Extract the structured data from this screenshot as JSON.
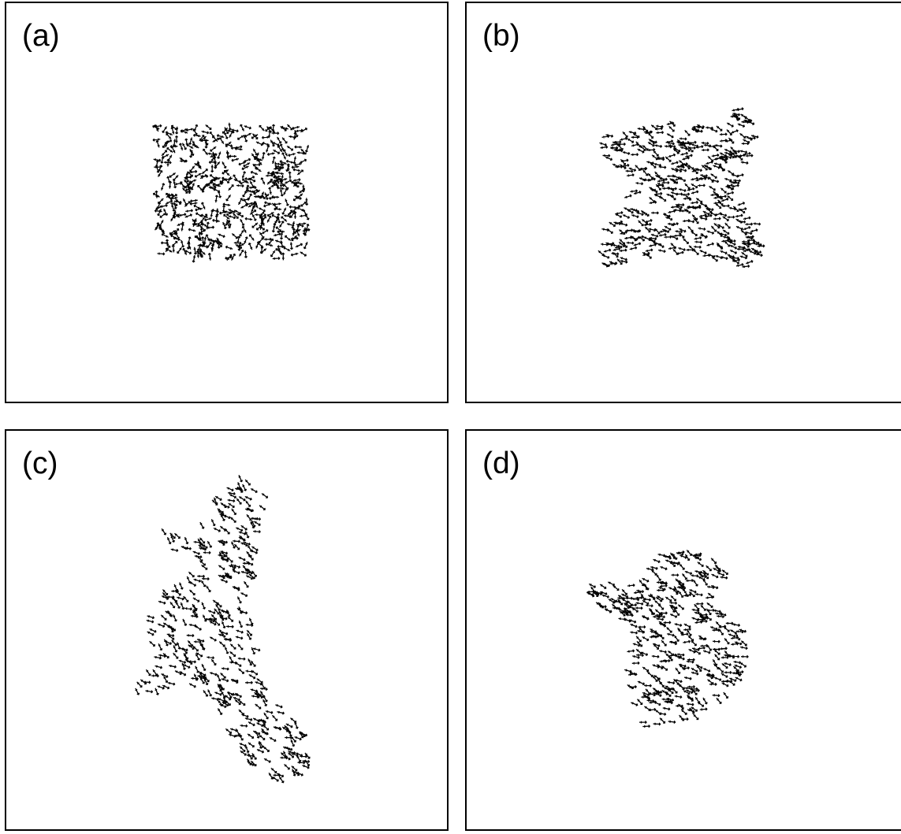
{
  "panels": [
    {
      "id": "a",
      "label": "(a)",
      "formation": "square"
    },
    {
      "id": "b",
      "label": "(b)",
      "formation": "x-shape"
    },
    {
      "id": "c",
      "label": "(c)",
      "formation": "elongated-diagonal"
    },
    {
      "id": "d",
      "label": "(d)",
      "formation": "irregular-blob"
    }
  ],
  "colors": {
    "agent": "#000000",
    "border": "#000000",
    "background": "#ffffff"
  }
}
